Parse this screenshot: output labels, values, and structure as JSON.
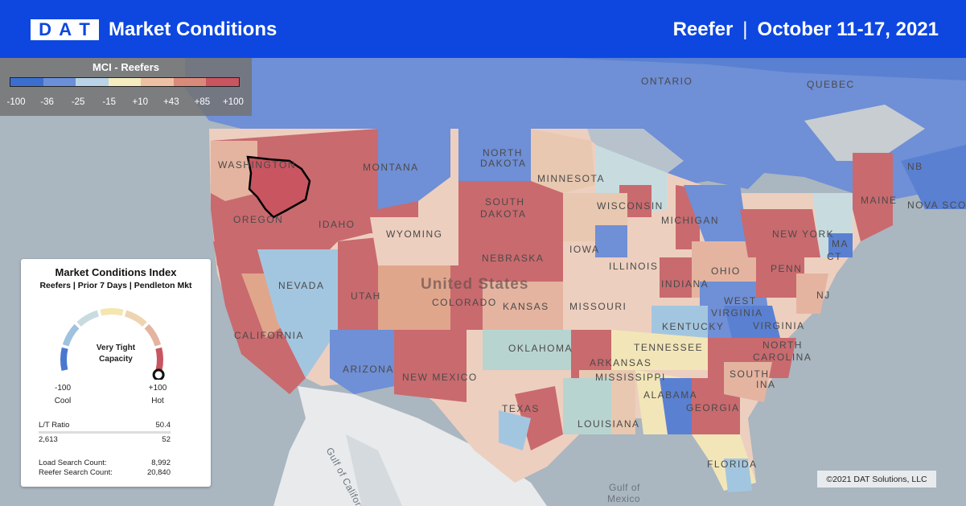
{
  "header": {
    "logo_letters": [
      "D",
      "A",
      "T"
    ],
    "title": "Market Conditions",
    "equipment": "Reefer",
    "separator": "|",
    "date_range": "October 11-17, 2021"
  },
  "legend": {
    "title": "MCI - Reefers",
    "ticks": [
      "-100",
      "-36",
      "-25",
      "-15",
      "+10",
      "+43",
      "+85",
      "+100"
    ],
    "colors": [
      "#3b6fcf",
      "#6b8fd8",
      "#b8d4e6",
      "#f5ecc0",
      "#eec0a4",
      "#d98a7a",
      "#c85560"
    ]
  },
  "map_labels": {
    "ontario": "ONTARIO",
    "quebec": "QUEBEC",
    "nb": "NB",
    "nova_scotia": "NOVA SCO",
    "washington": "WASHINGTON",
    "oregon": "OREGON",
    "idaho": "IDAHO",
    "montana": "MONTANA",
    "north_dakota_1": "NORTH",
    "north_dakota_2": "DAKOTA",
    "south_dakota_1": "SOUTH",
    "south_dakota_2": "DAKOTA",
    "minnesota": "MINNESOTA",
    "wisconsin": "WISCONSIN",
    "michigan": "MICHIGAN",
    "wyoming": "WYOMING",
    "nebraska": "NEBRASKA",
    "iowa": "IOWA",
    "illinois": "ILLINOIS",
    "indiana": "INDIANA",
    "ohio": "OHIO",
    "penn": "PENN",
    "new_york": "NEW YORK",
    "maine": "MAINE",
    "ma": "MA",
    "ct": "CT",
    "nj": "NJ",
    "nevada": "NEVADA",
    "utah": "UTAH",
    "colorado": "COLORADO",
    "kansas": "KANSAS",
    "missouri": "MISSOURI",
    "kentucky": "KENTUCKY",
    "west_virginia_1": "WEST",
    "west_virginia_2": "VIRGINIA",
    "virginia": "VIRGINIA",
    "california": "CALIFORNIA",
    "arizona": "ARIZONA",
    "new_mexico": "NEW MEXICO",
    "oklahoma": "OKLAHOMA",
    "arkansas": "ARKANSAS",
    "tennessee": "TENNESSEE",
    "north_carolina_1": "NORTH",
    "north_carolina_2": "CAROLINA",
    "south_carolina_1": "SOUTH",
    "south_carolina_2": "INA",
    "mississippi": "MISSISSIPPI",
    "alabama": "ALABAMA",
    "georgia": "GEORGIA",
    "texas": "TEXAS",
    "louisiana": "LOUISIANA",
    "florida": "FLORIDA",
    "united_states": "United States",
    "gulf_california": "Gulf of California",
    "gulf_mexico_1": "Gulf of",
    "gulf_mexico_2": "Mexico"
  },
  "card": {
    "title": "Market Conditions Index",
    "subtitle": "Reefers | Prior 7 Days | Pendleton Mkt",
    "status_line1": "Very Tight",
    "status_line2": "Capacity",
    "min_value": "-100",
    "min_label": "Cool",
    "max_value": "+100",
    "max_label": "Hot",
    "gauge_level": 100,
    "lt_ratio_label": "L/T Ratio",
    "lt_ratio_value": "50.4",
    "loads_value": "2,613",
    "trucks_value": "52",
    "load_search_label": "Load Search Count:",
    "load_search_value": "8,992",
    "reefer_search_label": "Reefer Search Count:",
    "reefer_search_value": "20,840"
  },
  "copyright": "©2021 DAT Solutions, LLC",
  "colors": {
    "header_bg": "#0d47e0",
    "hot": "#c85560",
    "cold": "#3b6fcf"
  }
}
